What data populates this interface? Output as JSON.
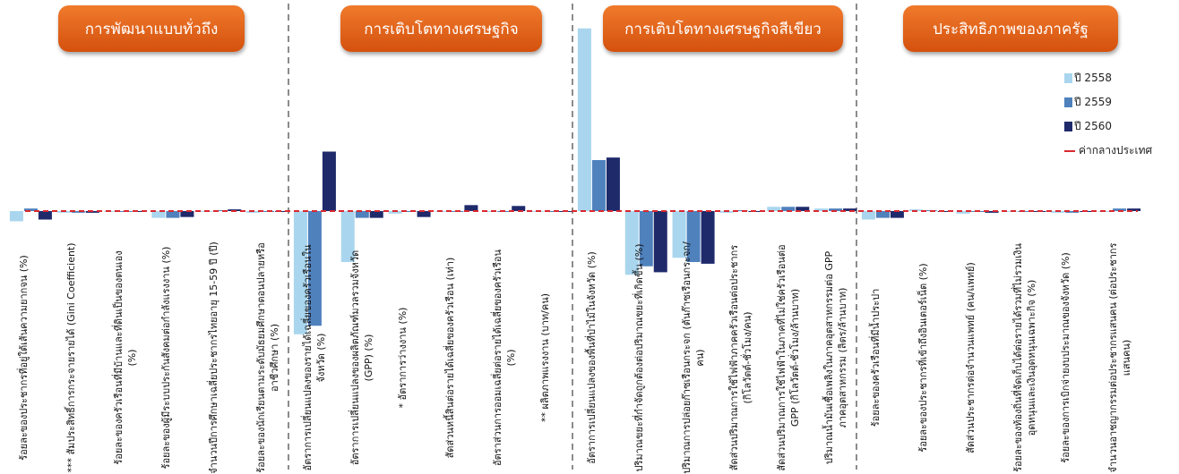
{
  "groups": [
    {
      "title": "การพัฒนาแบบทั่วถึง"
    },
    {
      "title": "การเติบโตทางเศรษฐกิจ"
    },
    {
      "title": "การเติบโตทางเศรษฐกิจสีเขียว"
    },
    {
      "title": "ประสิทธิภาพของภาครัฐ"
    }
  ],
  "colors": {
    "y2558": "#a9d6ee",
    "y2559": "#4f81bd",
    "y2560": "#1f2a6b",
    "reference": "#d9282f",
    "pill": "#e3651d"
  },
  "chart_data": {
    "type": "bar",
    "title": "",
    "xlabel": "",
    "ylabel": "",
    "reference_line": {
      "name": "ค่ากลางประเทศ",
      "value": 0
    },
    "legend_position": "right",
    "grid": false,
    "categories": [
      "ร้อยละของประชากรที่อยู่ใต้เส้นความยากจน (%)",
      "*** สัมประสิทธิ์การกระจายรายได้ (Gini Coefficient)",
      "ร้อยละของครัวเรือนที่มีบ้านและที่ดินเป็นของตนเอง (%)",
      "ร้อยละของผู้มีระบบประกันสังคมต่อกำลังแรงงาน (%)",
      "จำนวนปีการศึกษาเฉลี่ยประชากรไทยอายุ 15-59 ปี (ปี)",
      "ร้อยละของนักเรียนตามระดับมัธยมศึกษาตอนปลายหรืออาชีวศึกษา (%)",
      "อัตราการเปลี่ยนแปลงของรายได้เฉลี่ยของครัวเรือนในจังหวัด (%)",
      "อัตราการเปลี่ยนแปลงของผลิตภัณฑ์มวลรวมจังหวัด (GPP) (%)",
      "* อัตราการว่างงาน (%)",
      "สัดส่วนหนี้สินต่อรายได้เฉลี่ยของครัวเรือน (เท่า)",
      "อัตราส่วนการออมเฉลี่ยต่อรายได้เฉลี่ยของครัวเรือน (%)",
      "** ผลิตภาพแรงงาน (บาท/คน)",
      "อัตราการเปลี่ยนแปลงของพื้นที่ป่าไม้ในจังหวัด (%)",
      "ปริมาณขยะที่กำจัดถูกต้องต่อปริมาณขยะที่เกิดขึ้น (%)",
      "ปริมาณการปล่อยก๊าซเรือนกระจก (ตันก๊าซเรือนกระจก/คน)",
      "สัดส่วนปริมาณการใช้ไฟฟ้าภาคครัวเรือนต่อประชากร (กิโลวัตต์-ชั่วโมง/คน)",
      "สัดส่วนปริมาณการใช้ไฟฟ้าในภาคที่ไม่ใช่ครัวเรือนต่อ GPP (กิโลวัตต์-ชั่วโมง/ล้านบาท)",
      "ปริมาณน้ำมันเชื้อเพลิงในภาคอุตสาหกรรมต่อ GPP ภาคอุตสาหกรรม (ลิตร/ล้านบาท)",
      "ร้อยละของครัวเรือนที่มีน้ำประปา",
      "ร้อยละของประชากรที่เข้าถึงอินเตอร์เน็ต (%)",
      "สัดส่วนประชากรต่อจำนวนแพทย์ (คน/แพทย์)",
      "ร้อยละของท้องถิ่นที่จัดเก็บได้ต่อรายได้รวมที่ไม่รวมเงินอุดหนุนและเงินอุดหนุนเฉพาะกิจ (%)",
      "ร้อยละของการเบิกจ่ายงบประมาณของจังหวัด (%)",
      "จำนวนอาชญากรรมต่อประชากรแสนคน (ต่อประชากรแสนคน)"
    ],
    "series": [
      {
        "name": "ปี 2558",
        "values": [
          -0.12,
          -0.02,
          0.0,
          -0.08,
          -0.01,
          -0.02,
          -1.45,
          -0.6,
          -0.03,
          -0.01,
          -0.01,
          -0.01,
          2.15,
          -0.75,
          -0.55,
          -0.02,
          0.05,
          0.03,
          -0.1,
          0.02,
          -0.03,
          0.0,
          -0.02,
          -0.01
        ]
      },
      {
        "name": "ปี 2559",
        "values": [
          0.03,
          -0.02,
          0.0,
          -0.08,
          0.01,
          -0.01,
          -1.35,
          -0.08,
          0.0,
          0.0,
          0.0,
          -0.01,
          0.6,
          -0.65,
          -0.6,
          0.01,
          0.05,
          0.03,
          -0.08,
          0.01,
          -0.01,
          0.0,
          -0.02,
          0.03
        ]
      },
      {
        "name": "ปี 2560",
        "values": [
          -0.1,
          -0.02,
          0.0,
          -0.07,
          0.02,
          0.0,
          0.7,
          -0.08,
          -0.07,
          0.07,
          0.06,
          -0.01,
          0.63,
          -0.72,
          -0.62,
          0.0,
          0.05,
          0.03,
          -0.08,
          0.0,
          -0.02,
          0.0,
          0.0,
          0.03
        ]
      }
    ],
    "ylim": [
      -1.45,
      2.15
    ]
  }
}
